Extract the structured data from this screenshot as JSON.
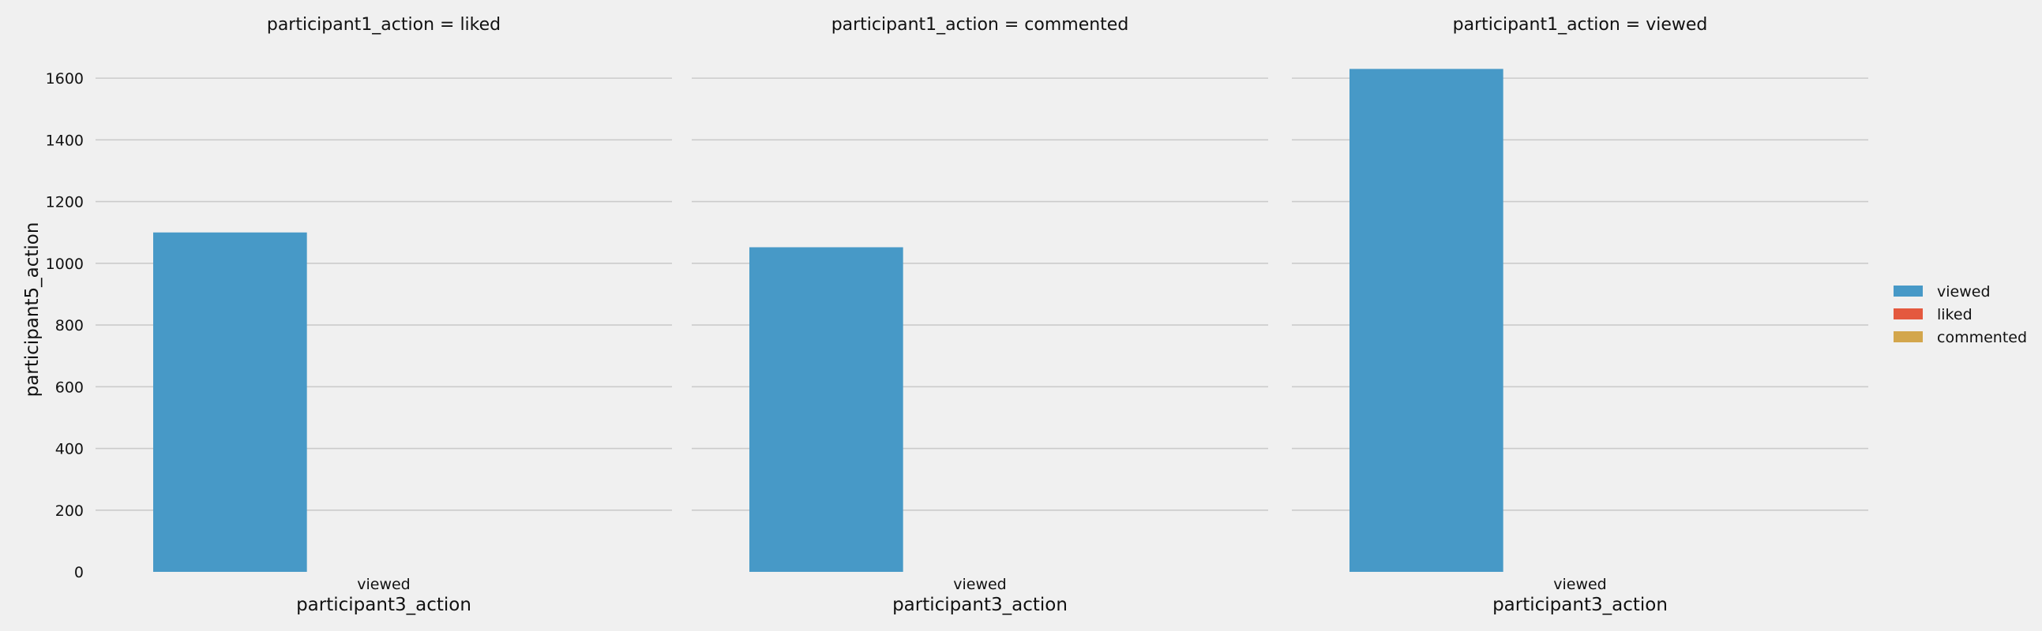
{
  "chart_data": {
    "type": "bar",
    "ylabel": "participant5_action",
    "ylim": [
      0,
      1700
    ],
    "yticks": [
      0,
      200,
      400,
      600,
      800,
      1000,
      1200,
      1400,
      1600
    ],
    "grid": true,
    "legend_position": "right",
    "hue_order": [
      "viewed",
      "liked",
      "commented"
    ],
    "colors": {
      "viewed": "#4799c7",
      "liked": "#e4593e",
      "commented": "#d3a64c"
    },
    "panels": [
      {
        "title": "participant1_action = liked",
        "xlabel": "participant3_action",
        "categories": [
          "viewed"
        ],
        "series": [
          {
            "name": "viewed",
            "values": [
              1100
            ]
          },
          {
            "name": "liked",
            "values": [
              0
            ]
          },
          {
            "name": "commented",
            "values": [
              0
            ]
          }
        ]
      },
      {
        "title": "participant1_action = commented",
        "xlabel": "participant3_action",
        "categories": [
          "viewed"
        ],
        "series": [
          {
            "name": "viewed",
            "values": [
              1052
            ]
          },
          {
            "name": "liked",
            "values": [
              0
            ]
          },
          {
            "name": "commented",
            "values": [
              0
            ]
          }
        ]
      },
      {
        "title": "participant1_action = viewed",
        "xlabel": "participant3_action",
        "categories": [
          "viewed"
        ],
        "series": [
          {
            "name": "viewed",
            "values": [
              1630
            ]
          },
          {
            "name": "liked",
            "values": [
              0
            ]
          },
          {
            "name": "commented",
            "values": [
              0
            ]
          }
        ]
      }
    ]
  }
}
